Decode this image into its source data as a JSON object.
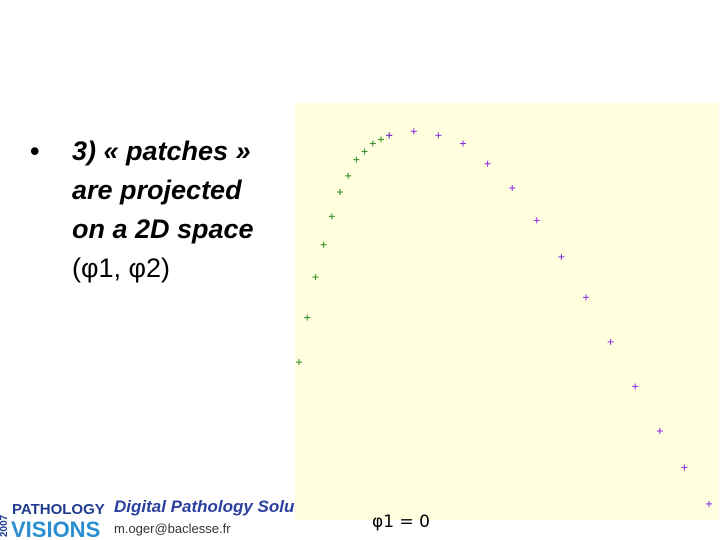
{
  "slide": {
    "bullet_symbol": "•",
    "bullet_lines": [
      "3) « patches »",
      "are projected",
      "on a 2D space"
    ],
    "phi_line": "(φ1, φ2)",
    "phi_zero_label": "φ1 = 0"
  },
  "footer": {
    "logo_year": "2007",
    "logo_top": "PATHOLOGY",
    "logo_bottom": "VISIONS",
    "title": "Digital Pathology Solutions",
    "email": "m.oger@baclesse.fr"
  },
  "colors": {
    "plot_bg": "#ffffe0",
    "green": "#2e8b1f",
    "purple": "#8a2be2",
    "title_blue": "#2b3f9e"
  },
  "chart_data": {
    "type": "scatter",
    "markers": "+",
    "grid": false,
    "axes_visible": false,
    "xlim": [
      0,
      1
    ],
    "ylim": [
      0,
      1
    ],
    "series": [
      {
        "color": "#2e8b1f",
        "x": [
          0.0,
          0.02,
          0.04,
          0.06,
          0.08,
          0.1,
          0.12,
          0.14,
          0.16,
          0.18,
          0.2,
          0.22
        ],
        "y": [
          0.37,
          0.48,
          0.58,
          0.66,
          0.73,
          0.79,
          0.83,
          0.87,
          0.89,
          0.91,
          0.92,
          0.93
        ]
      },
      {
        "color": "#8a2be2",
        "x": [
          0.22,
          0.28,
          0.34,
          0.4,
          0.46,
          0.52,
          0.58,
          0.64,
          0.7,
          0.76,
          0.82,
          0.88,
          0.94,
          1.0
        ],
        "y": [
          0.93,
          0.94,
          0.93,
          0.91,
          0.86,
          0.8,
          0.72,
          0.63,
          0.53,
          0.42,
          0.31,
          0.2,
          0.11,
          0.02
        ]
      }
    ]
  }
}
